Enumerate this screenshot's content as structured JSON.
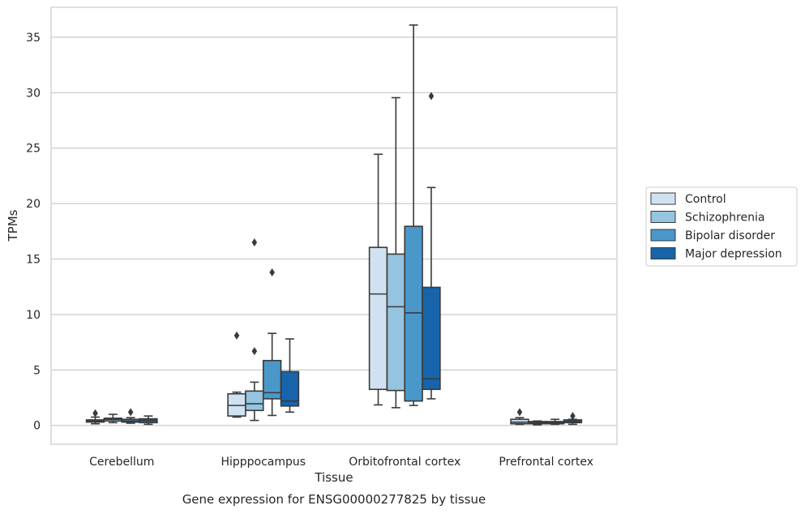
{
  "caption": "Gene expression for ENSG00000277825 by tissue",
  "chart_data": {
    "type": "box",
    "xlabel": "Tissue",
    "ylabel": "TPMs",
    "ylim": [
      -1.7,
      37.7
    ],
    "yticks": [
      0,
      5,
      10,
      15,
      20,
      25,
      30,
      35
    ],
    "grid": true,
    "legend_position": "right",
    "categories": [
      "Cerebellum",
      "Hipppocampus",
      "Orbitofrontal cortex",
      "Prefrontal cortex"
    ],
    "series": [
      {
        "name": "Control",
        "color": "#d0e1f2",
        "boxes": [
          {
            "whisker_low": 0.15,
            "q1": 0.3,
            "median": 0.4,
            "q3": 0.5,
            "whisker_high": 0.75,
            "outliers": [
              1.1
            ]
          },
          {
            "whisker_low": 0.75,
            "q1": 0.85,
            "median": 1.8,
            "q3": 2.85,
            "whisker_high": 3.0,
            "outliers": [
              8.1
            ]
          },
          {
            "whisker_low": 1.85,
            "q1": 3.25,
            "median": 11.85,
            "q3": 16.05,
            "whisker_high": 24.45,
            "outliers": []
          },
          {
            "whisker_low": 0.1,
            "q1": 0.15,
            "median": 0.3,
            "q3": 0.55,
            "whisker_high": 0.7,
            "outliers": [
              1.2
            ]
          }
        ]
      },
      {
        "name": "Schizophrenia",
        "color": "#94c4df",
        "boxes": [
          {
            "whisker_low": 0.25,
            "q1": 0.4,
            "median": 0.55,
            "q3": 0.65,
            "whisker_high": 1.0,
            "outliers": []
          },
          {
            "whisker_low": 0.45,
            "q1": 1.35,
            "median": 1.95,
            "q3": 3.1,
            "whisker_high": 3.9,
            "outliers": [
              6.7,
              16.5
            ]
          },
          {
            "whisker_low": 1.6,
            "q1": 3.15,
            "median": 10.7,
            "q3": 15.45,
            "whisker_high": 29.55,
            "outliers": []
          },
          {
            "whisker_low": 0.05,
            "q1": 0.15,
            "median": 0.25,
            "q3": 0.35,
            "whisker_high": 0.4,
            "outliers": []
          }
        ]
      },
      {
        "name": "Bipolar disorder",
        "color": "#4a98c9",
        "boxes": [
          {
            "whisker_low": 0.2,
            "q1": 0.3,
            "median": 0.4,
            "q3": 0.55,
            "whisker_high": 0.7,
            "outliers": [
              1.2
            ]
          },
          {
            "whisker_low": 0.9,
            "q1": 2.4,
            "median": 2.95,
            "q3": 5.85,
            "whisker_high": 8.3,
            "outliers": [
              13.8
            ]
          },
          {
            "whisker_low": 1.8,
            "q1": 2.2,
            "median": 10.15,
            "q3": 17.95,
            "whisker_high": 36.1,
            "outliers": []
          },
          {
            "whisker_low": 0.1,
            "q1": 0.15,
            "median": 0.25,
            "q3": 0.35,
            "whisker_high": 0.55,
            "outliers": []
          }
        ]
      },
      {
        "name": "Major depression",
        "color": "#1764ab",
        "boxes": [
          {
            "whisker_low": 0.1,
            "q1": 0.25,
            "median": 0.45,
            "q3": 0.6,
            "whisker_high": 0.85,
            "outliers": []
          },
          {
            "whisker_low": 1.2,
            "q1": 1.75,
            "median": 2.2,
            "q3": 4.85,
            "whisker_high": 7.8,
            "outliers": []
          },
          {
            "whisker_low": 2.4,
            "q1": 3.25,
            "median": 4.2,
            "q3": 12.45,
            "whisker_high": 21.45,
            "outliers": [
              29.7
            ]
          },
          {
            "whisker_low": 0.1,
            "q1": 0.25,
            "median": 0.35,
            "q3": 0.5,
            "whisker_high": 0.55,
            "outliers": [
              0.85
            ]
          }
        ]
      }
    ]
  }
}
